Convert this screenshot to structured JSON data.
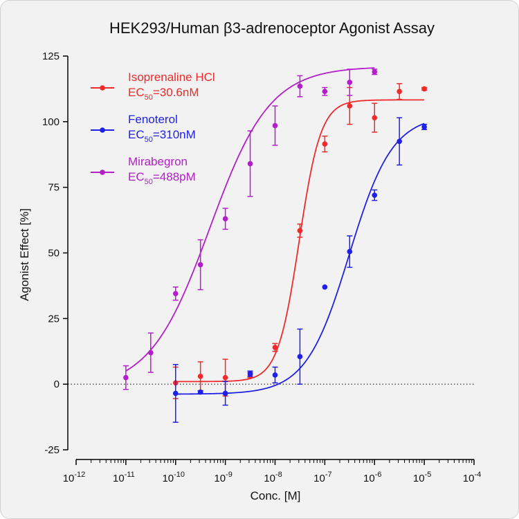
{
  "chart_data": {
    "type": "scatter",
    "title": "HEK293/Human β3-adrenoceptor Agonist Assay",
    "xlabel": "Conc. [M]",
    "ylabel": "Agonist Effect [%]",
    "x_scale": "log10",
    "xlim": [
      1e-12,
      0.0001
    ],
    "ylim": [
      -25,
      125
    ],
    "x_tick_base": "10",
    "x_tick_exponents": [
      "-12",
      "-11",
      "-10",
      "-9",
      "-8",
      "-7",
      "-6",
      "-5",
      "-4"
    ],
    "y_ticks": [
      "-25",
      "0",
      "25",
      "50",
      "75",
      "100",
      "125"
    ],
    "reference_line": {
      "y": 0,
      "style": "dotted"
    },
    "legend_position": "top-left",
    "series": [
      {
        "name": "Isoprenaline HCl",
        "ec50_prefix": "EC",
        "ec50_sub": "50",
        "ec50_value": "=30.6nM",
        "color": "#ee2a2a",
        "points": [
          {
            "x": 1e-10,
            "y": 0.5,
            "err": 6
          },
          {
            "x": 3.16e-10,
            "y": 3,
            "err": 5.5
          },
          {
            "x": 1e-09,
            "y": 2.5,
            "err": 7
          },
          {
            "x": 3.16e-09,
            "y": 3.5,
            "err": 1
          },
          {
            "x": 1e-08,
            "y": 14,
            "err": 1.5
          },
          {
            "x": 3.16e-08,
            "y": 58.5,
            "err": 2.5
          },
          {
            "x": 1e-07,
            "y": 91.5,
            "err": 3
          },
          {
            "x": 3.16e-07,
            "y": 106,
            "err": 7
          },
          {
            "x": 1e-06,
            "y": 101.5,
            "err": 5.5
          },
          {
            "x": 3.16e-06,
            "y": 111.5,
            "err": 3
          },
          {
            "x": 1e-05,
            "y": 112.5,
            "err": 0.5
          }
        ],
        "fit": {
          "bottom": 1,
          "top": 108.3,
          "log_ec50": -7.514,
          "hill": 2.0
        }
      },
      {
        "name": "Fenoterol",
        "ec50_prefix": "EC",
        "ec50_sub": "50",
        "ec50_value": "=310nM",
        "color": "#1f1fe6",
        "points": [
          {
            "x": 1e-10,
            "y": -3.5,
            "err": 11
          },
          {
            "x": 3.16e-10,
            "y": -3,
            "err": 0.5
          },
          {
            "x": 1e-09,
            "y": -3.5,
            "err": 4.5
          },
          {
            "x": 3.16e-09,
            "y": 4,
            "err": 1
          },
          {
            "x": 1e-08,
            "y": 3.5,
            "err": 3
          },
          {
            "x": 3.16e-08,
            "y": 10.5,
            "err": 10.5
          },
          {
            "x": 1e-07,
            "y": 37,
            "err": 0
          },
          {
            "x": 3.16e-07,
            "y": 50.5,
            "err": 6
          },
          {
            "x": 1e-06,
            "y": 72,
            "err": 2
          },
          {
            "x": 3.16e-06,
            "y": 92.5,
            "err": 9
          },
          {
            "x": 1e-05,
            "y": 98,
            "err": 1
          }
        ],
        "fit": {
          "bottom": -3.8,
          "top": 102.5,
          "log_ec50": -6.509,
          "hill": 1.0
        }
      },
      {
        "name": "Mirabegron",
        "ec50_prefix": "EC",
        "ec50_sub": "50",
        "ec50_value": "=488pM",
        "color": "#b21fc8",
        "points": [
          {
            "x": 1e-11,
            "y": 2.5,
            "err": 4.5
          },
          {
            "x": 3.16e-11,
            "y": 12,
            "err": 7.5
          },
          {
            "x": 1e-10,
            "y": 34.5,
            "err": 2.5
          },
          {
            "x": 3.16e-10,
            "y": 45.5,
            "err": 9.5
          },
          {
            "x": 1e-09,
            "y": 63,
            "err": 4
          },
          {
            "x": 3.16e-09,
            "y": 84,
            "err": 12.5
          },
          {
            "x": 1e-08,
            "y": 98.5,
            "err": 7.5
          },
          {
            "x": 3.16e-08,
            "y": 113.5,
            "err": 4
          },
          {
            "x": 1e-07,
            "y": 111.5,
            "err": 1.5
          },
          {
            "x": 3.16e-07,
            "y": 115,
            "err": 5
          },
          {
            "x": 1e-06,
            "y": 119,
            "err": 1
          }
        ],
        "fit": {
          "bottom": -2,
          "top": 121,
          "log_ec50": -9.312,
          "hill": 0.72
        }
      }
    ]
  }
}
